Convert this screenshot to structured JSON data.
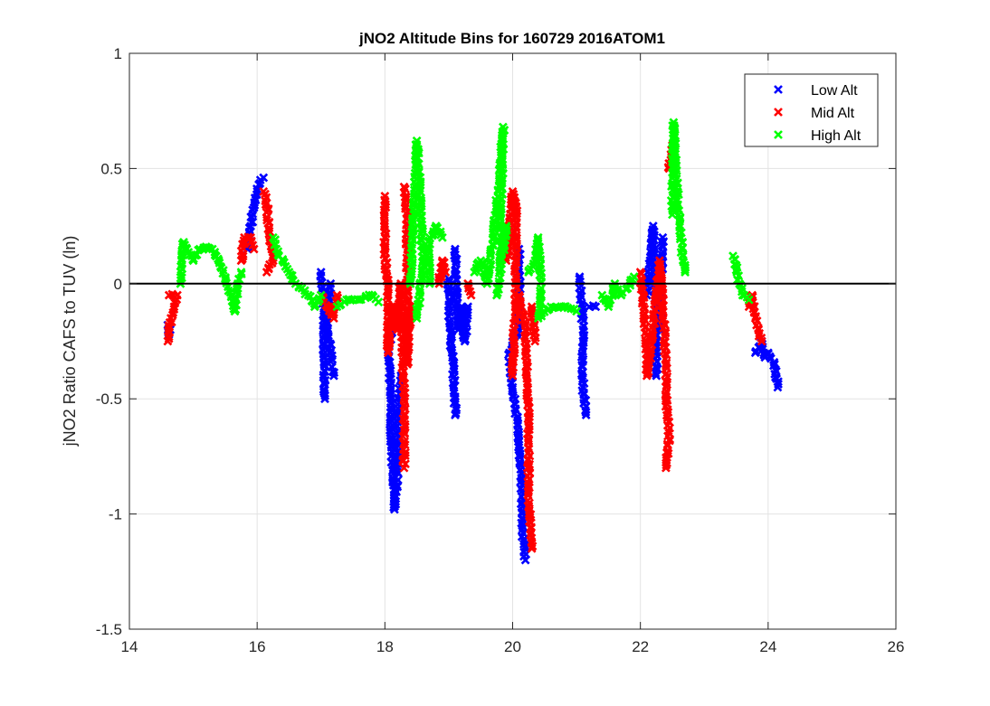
{
  "chart_data": {
    "type": "scatter",
    "title": "jNO2 Altitude Bins for 160729 2016ATOM1",
    "xlabel": "",
    "ylabel": "jNO2 Ratio CAFS to TUV (ln)",
    "xlim": [
      14,
      26
    ],
    "ylim": [
      -1.5,
      1
    ],
    "xticks": [
      14,
      16,
      18,
      20,
      22,
      24,
      26
    ],
    "yticks": [
      -1.5,
      -1,
      -0.5,
      0,
      0.5,
      1
    ],
    "ytick_labels": [
      "-1.5",
      "-1",
      "-0.5",
      "0",
      "0.5",
      "1"
    ],
    "grid": true,
    "reference_line_y": 0,
    "legend_position": "top-right",
    "series": [
      {
        "name": "Low Alt",
        "color": "#0000ff",
        "segments": [
          [
            [
              14.6,
              -0.18
            ],
            [
              14.62,
              -0.22
            ],
            [
              14.64,
              -0.2
            ]
          ],
          [
            [
              15.85,
              0.15
            ],
            [
              15.9,
              0.25
            ],
            [
              15.95,
              0.33
            ],
            [
              16.0,
              0.4
            ],
            [
              16.05,
              0.45
            ],
            [
              16.1,
              0.46
            ]
          ],
          [
            [
              17.0,
              0.05
            ],
            [
              17.05,
              -0.1
            ],
            [
              17.05,
              -0.35
            ],
            [
              17.06,
              -0.5
            ]
          ],
          [
            [
              17.15,
              0.0
            ],
            [
              17.1,
              -0.2
            ],
            [
              17.15,
              -0.3
            ],
            [
              17.2,
              -0.4
            ]
          ],
          [
            [
              18.1,
              -0.2
            ],
            [
              18.05,
              -0.3
            ],
            [
              18.1,
              -0.5
            ],
            [
              18.1,
              -0.7
            ],
            [
              18.15,
              -0.9
            ],
            [
              18.15,
              -0.98
            ],
            [
              18.2,
              -0.8
            ],
            [
              18.2,
              -0.6
            ],
            [
              18.25,
              -0.4
            ]
          ],
          [
            [
              19.0,
              0.02
            ],
            [
              19.0,
              -0.1
            ],
            [
              19.05,
              -0.3
            ],
            [
              19.1,
              -0.5
            ],
            [
              19.1,
              -0.57
            ]
          ],
          [
            [
              19.1,
              0.15
            ],
            [
              19.15,
              -0.2
            ],
            [
              19.2,
              -0.1
            ],
            [
              19.25,
              -0.25
            ],
            [
              19.3,
              -0.1
            ]
          ],
          [
            [
              20.1,
              0.15
            ],
            [
              20.1,
              -0.2
            ],
            [
              19.95,
              -0.3
            ],
            [
              20.0,
              -0.45
            ],
            [
              20.05,
              -0.55
            ],
            [
              20.1,
              -0.7
            ],
            [
              20.15,
              -0.9
            ],
            [
              20.15,
              -1.05
            ],
            [
              20.2,
              -1.2
            ]
          ],
          [
            [
              21.05,
              0.03
            ],
            [
              21.1,
              -0.2
            ],
            [
              21.1,
              -0.45
            ],
            [
              21.15,
              -0.57
            ]
          ],
          [
            [
              21.2,
              -0.1
            ],
            [
              21.3,
              -0.1
            ]
          ],
          [
            [
              22.1,
              -0.05
            ],
            [
              22.15,
              0.1
            ],
            [
              22.2,
              0.25
            ],
            [
              22.25,
              -0.1
            ],
            [
              22.25,
              -0.4
            ]
          ],
          [
            [
              22.3,
              -0.2
            ],
            [
              22.35,
              0.2
            ]
          ],
          [
            [
              23.8,
              -0.3
            ],
            [
              23.9,
              -0.25
            ],
            [
              23.95,
              -0.32
            ],
            [
              24.0,
              -0.3
            ],
            [
              24.1,
              -0.35
            ],
            [
              24.15,
              -0.45
            ]
          ]
        ]
      },
      {
        "name": "Mid Alt",
        "color": "#ff0000",
        "segments": [
          [
            [
              14.6,
              -0.25
            ],
            [
              14.65,
              -0.15
            ],
            [
              14.7,
              -0.1
            ],
            [
              14.75,
              -0.05
            ],
            [
              14.62,
              -0.05
            ]
          ],
          [
            [
              15.75,
              0.1
            ],
            [
              15.8,
              0.2
            ],
            [
              15.9,
              0.2
            ],
            [
              15.95,
              0.15
            ]
          ],
          [
            [
              16.1,
              0.4
            ],
            [
              16.15,
              0.35
            ],
            [
              16.2,
              0.2
            ],
            [
              16.25,
              0.1
            ],
            [
              16.15,
              0.05
            ]
          ],
          [
            [
              17.0,
              -0.05
            ],
            [
              17.1,
              -0.1
            ],
            [
              17.2,
              -0.15
            ],
            [
              17.25,
              -0.05
            ]
          ],
          [
            [
              18.0,
              0.38
            ],
            [
              18.0,
              0.15
            ],
            [
              18.05,
              -0.05
            ],
            [
              18.05,
              -0.3
            ],
            [
              18.1,
              -0.1
            ],
            [
              18.2,
              -0.2
            ],
            [
              18.25,
              0.0
            ],
            [
              18.3,
              -0.5
            ],
            [
              18.3,
              -0.8
            ]
          ],
          [
            [
              18.3,
              0.42
            ],
            [
              18.35,
              0.3
            ],
            [
              18.35,
              -0.35
            ],
            [
              18.4,
              -0.1
            ]
          ],
          [
            [
              18.85,
              0.0
            ],
            [
              18.9,
              0.1
            ],
            [
              18.95,
              0.05
            ]
          ],
          [
            [
              19.3,
              0.0
            ],
            [
              19.35,
              -0.05
            ]
          ],
          [
            [
              19.9,
              0.1
            ],
            [
              19.95,
              0.2
            ],
            [
              20.0,
              0.4
            ],
            [
              20.05,
              0.35
            ],
            [
              20.05,
              0.0
            ],
            [
              20.0,
              -0.4
            ]
          ],
          [
            [
              20.1,
              -0.05
            ],
            [
              20.2,
              -0.2
            ],
            [
              20.25,
              -0.6
            ],
            [
              20.25,
              -0.9
            ],
            [
              20.3,
              -1.15
            ]
          ],
          [
            [
              20.35,
              -0.25
            ],
            [
              20.3,
              -0.1
            ]
          ],
          [
            [
              22.0,
              0.05
            ],
            [
              22.05,
              -0.1
            ],
            [
              22.1,
              -0.3
            ],
            [
              22.1,
              -0.4
            ],
            [
              22.2,
              -0.2
            ],
            [
              22.3,
              0.1
            ],
            [
              22.35,
              -0.1
            ],
            [
              22.4,
              -0.35
            ],
            [
              22.4,
              -0.5
            ],
            [
              22.45,
              -0.65
            ],
            [
              22.4,
              -0.8
            ]
          ],
          [
            [
              22.45,
              0.5
            ],
            [
              22.5,
              0.6
            ]
          ],
          [
            [
              23.7,
              -0.1
            ],
            [
              23.75,
              -0.05
            ],
            [
              23.8,
              -0.15
            ],
            [
              23.85,
              -0.2
            ],
            [
              23.9,
              -0.25
            ]
          ]
        ]
      },
      {
        "name": "High Alt",
        "color": "#00ff00",
        "segments": [
          [
            [
              14.8,
              0.0
            ],
            [
              14.85,
              0.18
            ],
            [
              14.9,
              0.15
            ],
            [
              15.0,
              0.1
            ],
            [
              15.1,
              0.15
            ],
            [
              15.2,
              0.16
            ],
            [
              15.3,
              0.15
            ],
            [
              15.4,
              0.1
            ],
            [
              15.5,
              0.02
            ],
            [
              15.6,
              -0.05
            ],
            [
              15.65,
              -0.12
            ],
            [
              15.7,
              0.0
            ],
            [
              15.75,
              0.05
            ]
          ],
          [
            [
              16.25,
              0.2
            ],
            [
              16.3,
              0.15
            ],
            [
              16.4,
              0.1
            ],
            [
              16.5,
              0.05
            ],
            [
              16.6,
              0.0
            ],
            [
              16.7,
              -0.02
            ],
            [
              16.8,
              -0.05
            ],
            [
              16.9,
              -0.1
            ],
            [
              17.0,
              -0.05
            ]
          ],
          [
            [
              17.25,
              -0.1
            ],
            [
              17.4,
              -0.07
            ],
            [
              17.6,
              -0.07
            ],
            [
              17.8,
              -0.05
            ],
            [
              17.9,
              -0.08
            ]
          ],
          [
            [
              18.4,
              0.0
            ],
            [
              18.45,
              0.3
            ],
            [
              18.5,
              0.62
            ],
            [
              18.55,
              0.4
            ],
            [
              18.6,
              0.1
            ],
            [
              18.5,
              -0.15
            ]
          ],
          [
            [
              18.7,
              0.0
            ],
            [
              18.7,
              0.2
            ],
            [
              18.8,
              0.25
            ],
            [
              18.9,
              0.2
            ]
          ],
          [
            [
              19.4,
              0.05
            ],
            [
              19.5,
              0.1
            ],
            [
              19.6,
              0.0
            ],
            [
              19.7,
              0.2
            ],
            [
              19.8,
              0.5
            ],
            [
              19.85,
              0.68
            ],
            [
              19.8,
              0.1
            ],
            [
              19.9,
              0.25
            ],
            [
              19.75,
              -0.05
            ]
          ],
          [
            [
              20.25,
              0.05
            ],
            [
              20.35,
              0.1
            ],
            [
              20.4,
              0.2
            ],
            [
              20.45,
              -0.05
            ],
            [
              20.4,
              -0.15
            ],
            [
              20.6,
              -0.1
            ],
            [
              20.8,
              -0.1
            ],
            [
              21.0,
              -0.12
            ]
          ],
          [
            [
              21.4,
              -0.05
            ],
            [
              21.5,
              -0.1
            ],
            [
              21.6,
              0.0
            ],
            [
              21.7,
              -0.05
            ],
            [
              21.8,
              -0.02
            ],
            [
              21.9,
              0.03
            ]
          ],
          [
            [
              22.5,
              0.3
            ],
            [
              22.52,
              0.7
            ],
            [
              22.55,
              0.5
            ],
            [
              22.6,
              0.3
            ],
            [
              22.65,
              0.15
            ],
            [
              22.7,
              0.05
            ]
          ],
          [
            [
              23.45,
              0.12
            ],
            [
              23.5,
              0.08
            ],
            [
              23.55,
              0.0
            ],
            [
              23.6,
              -0.05
            ],
            [
              23.7,
              -0.07
            ]
          ]
        ]
      }
    ]
  }
}
